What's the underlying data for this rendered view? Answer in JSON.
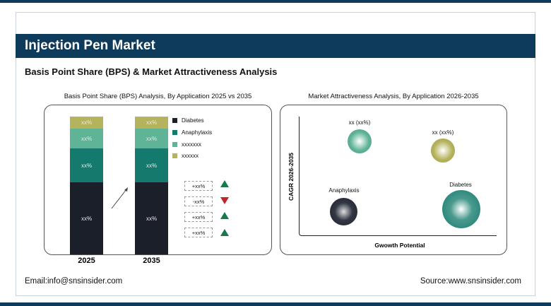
{
  "header": {
    "title": "Injection Pen Market",
    "subtitle": "Basis Point Share (BPS) & Market Attractiveness Analysis"
  },
  "chart_data": [
    {
      "type": "bar",
      "title": "Basis Point Share (BPS) Analysis, By Application 2025 vs 2035",
      "categories": [
        "2025",
        "2035"
      ],
      "series": [
        {
          "name": "Diabetes",
          "color": "#1b1f2a",
          "labels": [
            "xx%",
            "xx%"
          ],
          "change": "+xx%",
          "trend": "up"
        },
        {
          "name": "Anaphylaxis",
          "color": "#157a6e",
          "labels": [
            "xx%",
            "xx%"
          ],
          "change": "-xx%",
          "trend": "down"
        },
        {
          "name": "xxxxxxx",
          "color": "#5fb396",
          "labels": [
            "xx%",
            "xx%"
          ],
          "change": "+xx%",
          "trend": "up"
        },
        {
          "name": "xxxxxx",
          "color": "#b5b35c",
          "labels": [
            "xx%",
            "xx%"
          ],
          "change": "+xx%",
          "trend": "up"
        }
      ]
    },
    {
      "type": "scatter",
      "title": "Market Attractiveness Analysis, By Application 2026-2035",
      "xlabel": "Gwowth Potential",
      "ylabel": "CAGR 2026-2035",
      "points": [
        {
          "label": "xx (xx%)",
          "color": "#5fb396"
        },
        {
          "label": "xx (xx%)",
          "color": "#b5b35c"
        },
        {
          "label": "Anaphylaxis",
          "color": "#1b1f2a"
        },
        {
          "label": "Diabetes",
          "color": "#157a6e"
        }
      ]
    }
  ],
  "footer": {
    "email": "Email:info@snsinsider.com",
    "source": "Source:www.snsinsider.com"
  }
}
